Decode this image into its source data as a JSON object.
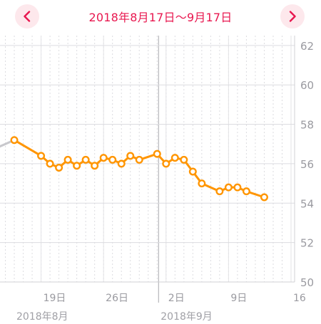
{
  "header": {
    "date_range": "2018年8月17日〜9月17日",
    "prev_icon": "chevron-left-icon",
    "next_icon": "chevron-right-icon",
    "accent_color": "#e8174f"
  },
  "chart_data": {
    "type": "line",
    "title": "2018年8月17日〜9月17日",
    "xlabel": "",
    "ylabel": "",
    "ylim": [
      50,
      62.5
    ],
    "xlim": [
      "2018-08-14",
      "2018-09-16"
    ],
    "y_ticks": [
      "50",
      "52",
      "54",
      "56",
      "58",
      "60",
      "62"
    ],
    "x_ticks": [
      {
        "date": "2018-08-19",
        "label": "19日"
      },
      {
        "date": "2018-08-26",
        "label": "26日"
      },
      {
        "date": "2018-09-02",
        "label": "2日"
      },
      {
        "date": "2018-09-09",
        "label": "9日"
      },
      {
        "date": "2018-09-16",
        "label": "16"
      }
    ],
    "month_labels": [
      {
        "date": "2018-08-16",
        "label": "2018年8月"
      },
      {
        "date": "2018-09-01",
        "label": "2018年9月"
      }
    ],
    "grid": true,
    "line_color": "#ff9500",
    "series": [
      {
        "name": "",
        "points": [
          {
            "x": "2018-08-16",
            "y": 57.2
          },
          {
            "x": "2018-08-19",
            "y": 56.4
          },
          {
            "x": "2018-08-20",
            "y": 56.0
          },
          {
            "x": "2018-08-21",
            "y": 55.8
          },
          {
            "x": "2018-08-22",
            "y": 56.2
          },
          {
            "x": "2018-08-23",
            "y": 55.9
          },
          {
            "x": "2018-08-24",
            "y": 56.2
          },
          {
            "x": "2018-08-25",
            "y": 55.9
          },
          {
            "x": "2018-08-26",
            "y": 56.3
          },
          {
            "x": "2018-08-27",
            "y": 56.2
          },
          {
            "x": "2018-08-28",
            "y": 56.0
          },
          {
            "x": "2018-08-29",
            "y": 56.4
          },
          {
            "x": "2018-08-30",
            "y": 56.2
          },
          {
            "x": "2018-09-01",
            "y": 56.5
          },
          {
            "x": "2018-09-02",
            "y": 56.0
          },
          {
            "x": "2018-09-03",
            "y": 56.3
          },
          {
            "x": "2018-09-04",
            "y": 56.2
          },
          {
            "x": "2018-09-05",
            "y": 55.6
          },
          {
            "x": "2018-09-06",
            "y": 55.0
          },
          {
            "x": "2018-09-08",
            "y": 54.6
          },
          {
            "x": "2018-09-09",
            "y": 54.8
          },
          {
            "x": "2018-09-10",
            "y": 54.8
          },
          {
            "x": "2018-09-11",
            "y": 54.6
          },
          {
            "x": "2018-09-13",
            "y": 54.3
          }
        ]
      }
    ],
    "previous_period_point": {
      "x": "2018-08-14",
      "y": 56.8,
      "color": "#c8c8cc"
    }
  }
}
